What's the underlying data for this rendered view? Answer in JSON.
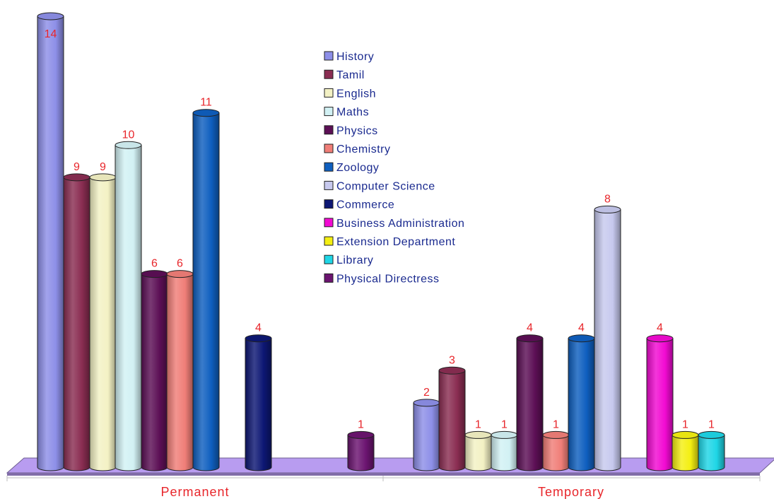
{
  "chart_data": {
    "type": "bar",
    "categories": [
      "Permanent",
      "Temporary"
    ],
    "series": [
      {
        "name": "History",
        "color": "#8d8fe8",
        "values": [
          14,
          2
        ]
      },
      {
        "name": "Tamil",
        "color": "#8a2d52",
        "values": [
          9,
          3
        ]
      },
      {
        "name": "English",
        "color": "#f3f1c4",
        "values": [
          9,
          1
        ]
      },
      {
        "name": "Maths",
        "color": "#d2f1f4",
        "values": [
          10,
          1
        ]
      },
      {
        "name": "Physics",
        "color": "#5c0f55",
        "values": [
          6,
          4
        ]
      },
      {
        "name": "Chemistry",
        "color": "#f07e78",
        "values": [
          6,
          1
        ]
      },
      {
        "name": "Zoology",
        "color": "#0f5fbf",
        "values": [
          11,
          4
        ]
      },
      {
        "name": "Computer Science",
        "color": "#c7c9ee",
        "values": [
          null,
          8
        ]
      },
      {
        "name": "Commerce",
        "color": "#0d1774",
        "values": [
          4,
          null
        ]
      },
      {
        "name": "Business Administration",
        "color": "#f20ad2",
        "values": [
          null,
          4
        ]
      },
      {
        "name": "Extension Department",
        "color": "#f4ef12",
        "values": [
          null,
          1
        ]
      },
      {
        "name": "Library",
        "color": "#1fd6e6",
        "values": [
          null,
          1
        ]
      },
      {
        "name": "Physical Directress",
        "color": "#6b1470",
        "values": [
          1,
          null
        ]
      }
    ],
    "ylim": [
      0,
      14
    ],
    "grid": false,
    "legend_position": "top-center"
  },
  "colors": {
    "floor": "#b89cf0",
    "value_label": "#e8262b",
    "legend_text": "#1a2a8f",
    "category_label": "#e8262b"
  }
}
